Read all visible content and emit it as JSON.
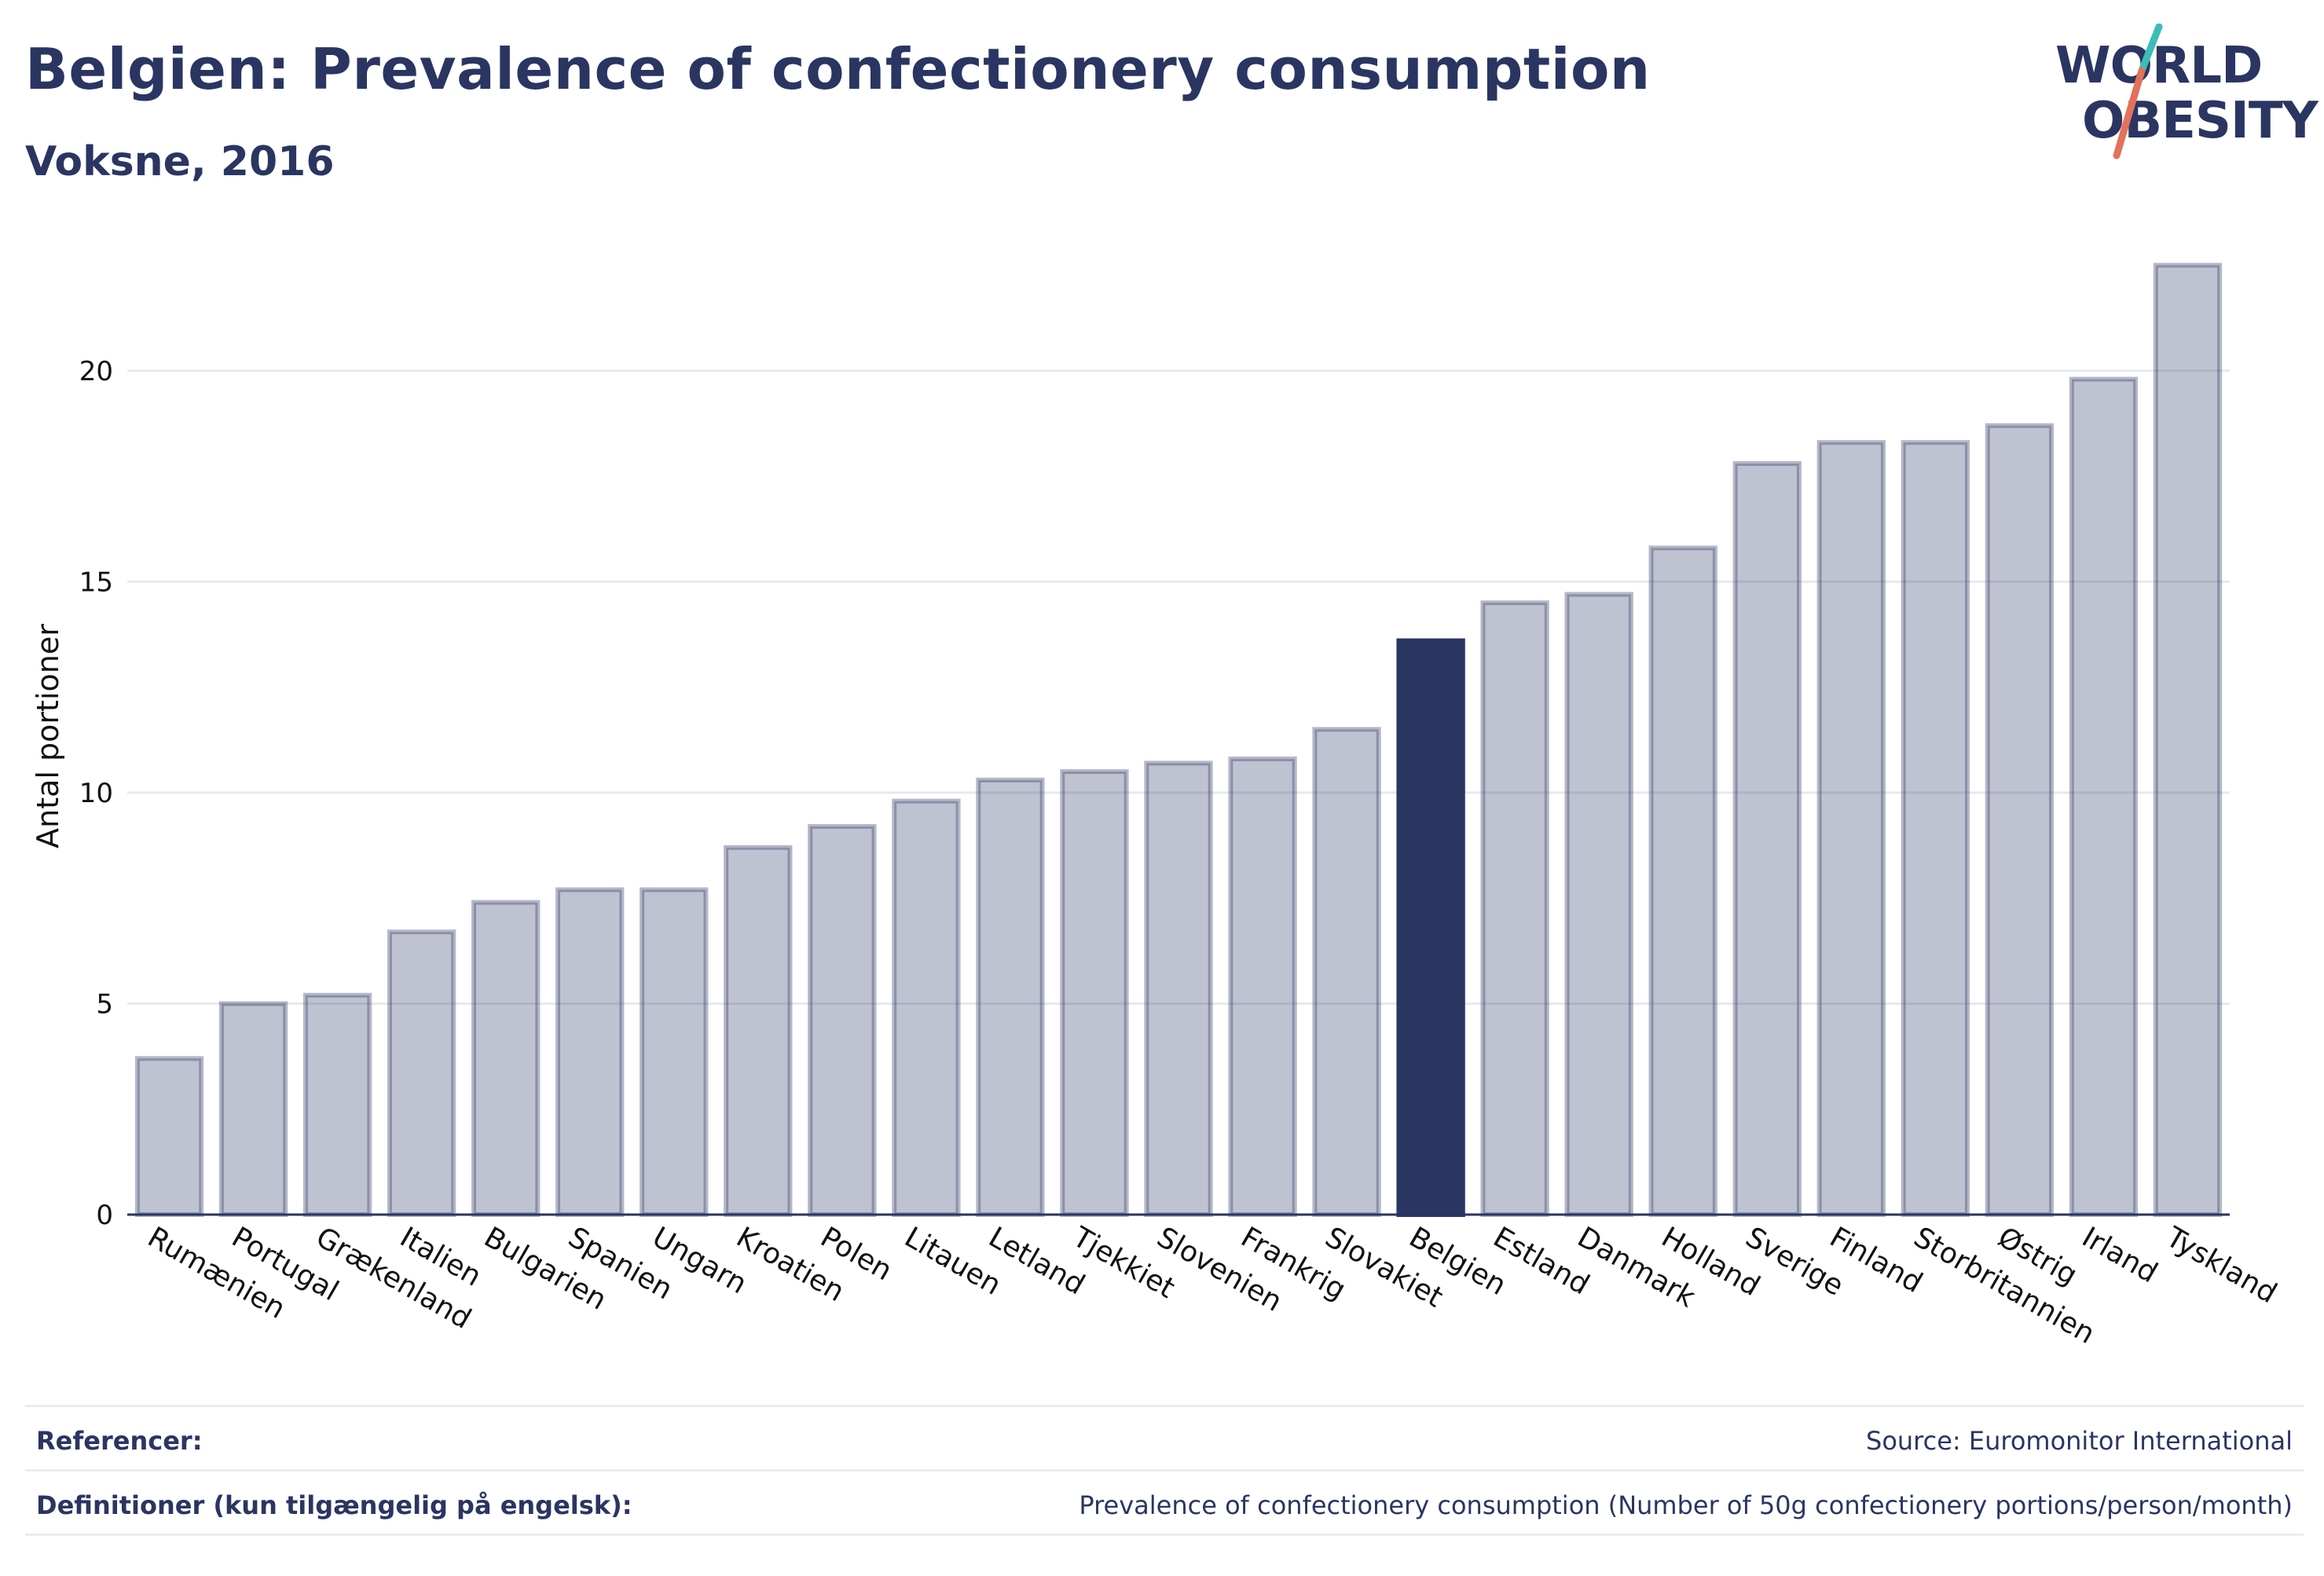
{
  "header": {
    "title": "Belgien: Prevalence of confectionery consumption",
    "subtitle": "Voksne, 2016"
  },
  "logo": {
    "line1": "WORLD",
    "line2": "OBESITY",
    "slash_colors": [
      "#3dbdb8",
      "#e2725b"
    ]
  },
  "colors": {
    "bar_default": "#2a3562",
    "bar_highlight": "#2a3562",
    "text": "#2a3562"
  },
  "chart_data": {
    "type": "bar",
    "ylabel": "Antal portioner",
    "xlabel": "",
    "ylim": [
      0,
      23.2
    ],
    "yticks": [
      0,
      5,
      10,
      15,
      20
    ],
    "grid": true,
    "highlight": "Belgien",
    "categories": [
      "Rumænien",
      "Portugal",
      "Grækenland",
      "Italien",
      "Bulgarien",
      "Spanien",
      "Ungarn",
      "Kroatien",
      "Polen",
      "Litauen",
      "Letland",
      "Tjekkiet",
      "Slovenien",
      "Frankrig",
      "Slovakiet",
      "Belgien",
      "Estland",
      "Danmark",
      "Holland",
      "Sverige",
      "Finland",
      "Storbritannien",
      "Østrig",
      "Irland",
      "Tyskland"
    ],
    "values": [
      3.7,
      5.0,
      5.2,
      6.7,
      7.4,
      7.7,
      7.7,
      8.7,
      9.2,
      9.8,
      10.3,
      10.5,
      10.7,
      10.8,
      11.5,
      13.6,
      14.5,
      14.7,
      15.8,
      17.8,
      18.3,
      18.3,
      18.7,
      19.8,
      22.5
    ]
  },
  "footer": {
    "references_label": "Referencer:",
    "references_value": "Source: Euromonitor International",
    "definitions_label": "Definitioner (kun tilgængelig på engelsk):",
    "definitions_value": "Prevalence of confectionery consumption (Number of 50g confectionery portions/person/month)"
  }
}
